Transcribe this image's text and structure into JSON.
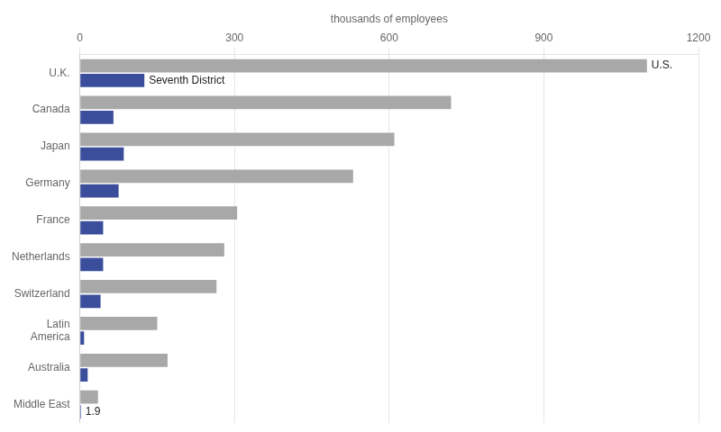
{
  "chart_data": {
    "type": "bar",
    "orientation": "horizontal",
    "x_label": "thousands of employees",
    "categories": [
      "U.K.",
      "Canada",
      "Japan",
      "Germany",
      "France",
      "Netherlands",
      "Switzerland",
      "Latin\nAmerica",
      "Australia",
      "Middle East"
    ],
    "series": [
      {
        "name": "U.S.",
        "color": "#a8a8a8",
        "values": [
          1100,
          720,
          610,
          530,
          305,
          280,
          265,
          150,
          170,
          35
        ]
      },
      {
        "name": "Seventh District",
        "color": "#3a4e9c",
        "values": [
          125,
          65,
          85,
          75,
          45,
          45,
          40,
          8,
          15,
          1.9
        ]
      }
    ],
    "annotations": [
      {
        "text": "1.9",
        "x": 1.9,
        "y": "Middle East",
        "series": "Seventh District"
      }
    ],
    "xlim": [
      0,
      1200
    ],
    "xticks": [
      0,
      300,
      600,
      900,
      1200
    ],
    "grid": true
  }
}
